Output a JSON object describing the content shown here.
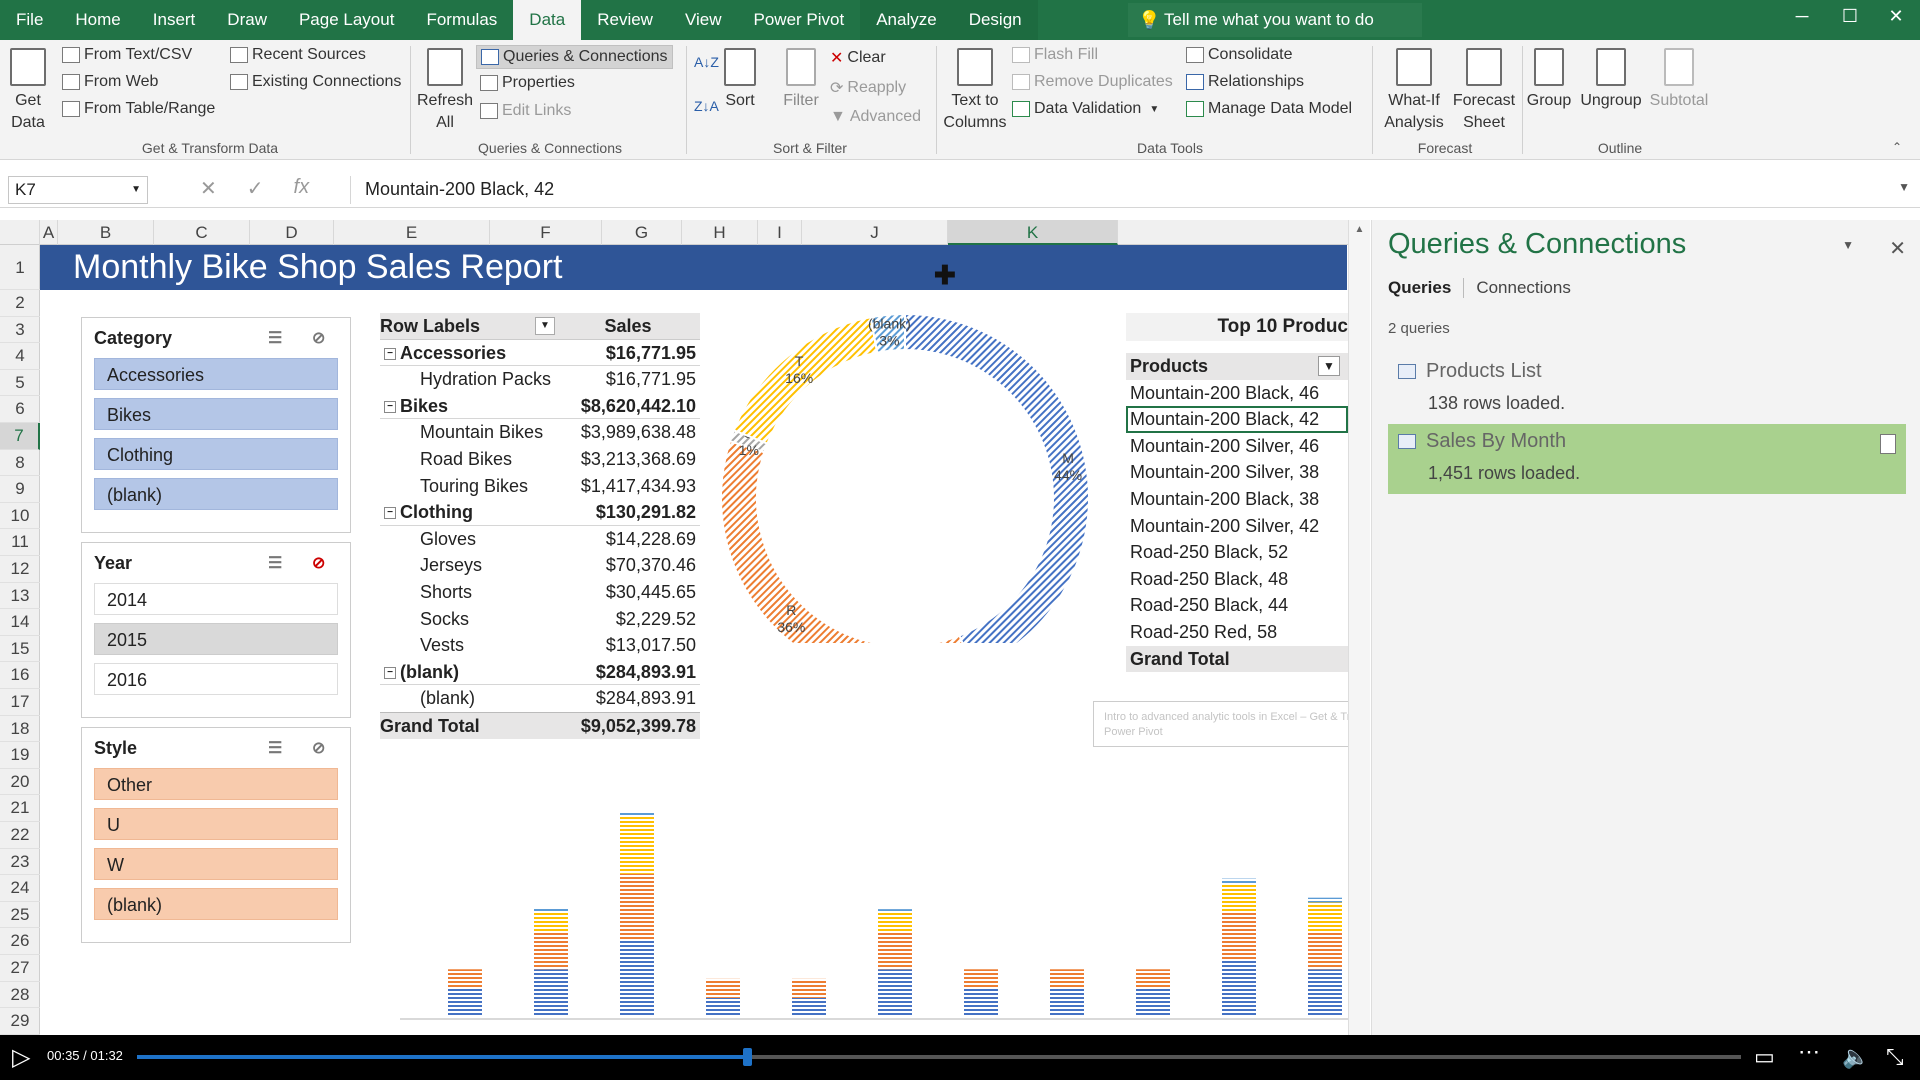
{
  "tabs": [
    "File",
    "Home",
    "Insert",
    "Draw",
    "Page Layout",
    "Formulas",
    "Data",
    "Review",
    "View",
    "Power Pivot",
    "Analyze",
    "Design"
  ],
  "tell_me": "Tell me what you want to do",
  "ribbon": {
    "get_data": "Get Data",
    "from_text": "From Text/CSV",
    "from_web": "From Web",
    "from_table": "From Table/Range",
    "recent_sources": "Recent Sources",
    "existing_connections": "Existing Connections",
    "group_get_transform": "Get & Transform Data",
    "refresh_all": "Refresh All",
    "queries_connections": "Queries & Connections",
    "properties": "Properties",
    "edit_links": "Edit Links",
    "group_queries": "Queries & Connections",
    "sort": "Sort",
    "filter": "Filter",
    "clear": "Clear",
    "reapply": "Reapply",
    "advanced": "Advanced",
    "group_sort_filter": "Sort & Filter",
    "text_to_columns": "Text to Columns",
    "flash_fill": "Flash Fill",
    "remove_duplicates": "Remove Duplicates",
    "data_validation": "Data Validation",
    "consolidate": "Consolidate",
    "relationships": "Relationships",
    "manage_data_model": "Manage Data Model",
    "group_data_tools": "Data Tools",
    "what_if": "What-If Analysis",
    "forecast_sheet": "Forecast Sheet",
    "group_forecast": "Forecast",
    "group": "Group",
    "ungroup": "Ungroup",
    "subtotal": "Subtotal",
    "group_outline": "Outline"
  },
  "formula_bar": {
    "name_box": "K7",
    "content": "Mountain-200 Black, 42"
  },
  "columns": [
    "A",
    "B",
    "C",
    "D",
    "E",
    "F",
    "G",
    "H",
    "I",
    "J",
    "K"
  ],
  "rows": [
    "1",
    "2",
    "3",
    "4",
    "5",
    "6",
    "7",
    "8",
    "9",
    "10",
    "11",
    "12",
    "13",
    "14",
    "15",
    "16",
    "17",
    "18",
    "19",
    "20",
    "21",
    "22",
    "23",
    "24",
    "25",
    "26",
    "27",
    "28",
    "29"
  ],
  "report_title": "Monthly Bike Shop Sales Report",
  "slicers": {
    "category": {
      "title": "Category",
      "items": [
        "Accessories",
        "Bikes",
        "Clothing",
        "(blank)"
      ]
    },
    "year": {
      "title": "Year",
      "items": [
        "2014",
        "2015",
        "2016"
      ],
      "selected": "2015"
    },
    "style": {
      "title": "Style",
      "items": [
        "Other",
        "U",
        "W",
        "(blank)"
      ]
    }
  },
  "pivot": {
    "header_label": "Row Labels",
    "header_value": "Sales",
    "rows": [
      {
        "label": "Accessories",
        "value": "$16,771.95",
        "level": "group"
      },
      {
        "label": "Hydration Packs",
        "value": "$16,771.95",
        "level": "sub"
      },
      {
        "label": "Bikes",
        "value": "$8,620,442.10",
        "level": "group"
      },
      {
        "label": "Mountain Bikes",
        "value": "$3,989,638.48",
        "level": "sub"
      },
      {
        "label": "Road Bikes",
        "value": "$3,213,368.69",
        "level": "sub"
      },
      {
        "label": "Touring Bikes",
        "value": "$1,417,434.93",
        "level": "sub"
      },
      {
        "label": "Clothing",
        "value": "$130,291.82",
        "level": "group"
      },
      {
        "label": "Gloves",
        "value": "$14,228.69",
        "level": "sub"
      },
      {
        "label": "Jerseys",
        "value": "$70,370.46",
        "level": "sub"
      },
      {
        "label": "Shorts",
        "value": "$30,445.65",
        "level": "sub"
      },
      {
        "label": "Socks",
        "value": "$2,229.52",
        "level": "sub"
      },
      {
        "label": "Vests",
        "value": "$13,017.50",
        "level": "sub"
      },
      {
        "label": "(blank)",
        "value": "$284,893.91",
        "level": "group"
      },
      {
        "label": "(blank)",
        "value": "$284,893.91",
        "level": "sub"
      }
    ],
    "grand_total_label": "Grand Total",
    "grand_total_value": "$9,052,399.78"
  },
  "top10": {
    "title": "Top 10 Produc",
    "header": "Products",
    "items": [
      "Mountain-200 Black, 46",
      "Mountain-200 Black, 42",
      "Mountain-200 Silver, 46",
      "Mountain-200 Silver, 38",
      "Mountain-200 Black, 38",
      "Mountain-200 Silver, 42",
      "Road-250 Black, 52",
      "Road-250 Black, 48",
      "Road-250 Black, 44",
      "Road-250 Red, 58"
    ],
    "selected_index": 1,
    "grand_total": "Grand Total"
  },
  "tooltip": "Intro to advanced analytic tools in Excel – Get & Transform, and Power Pivot",
  "chart_data": [
    {
      "type": "pie",
      "style": "donut",
      "slices": [
        {
          "label": "M",
          "value": 44,
          "pct": "44%",
          "color": "#4472c4"
        },
        {
          "label": "R",
          "value": 36,
          "pct": "36%",
          "color": "#ed7d31"
        },
        {
          "label": "S",
          "value": 1,
          "pct": "1%",
          "color": "#a5a5a5"
        },
        {
          "label": "T",
          "value": 16,
          "pct": "16%",
          "color": "#ffc000"
        },
        {
          "label": "(blank)",
          "value": 3,
          "pct": "3%",
          "color": "#5b9bd5"
        }
      ]
    },
    {
      "type": "bar",
      "stacked": true,
      "categories_count": 11,
      "series": [
        {
          "color": "#4472c4",
          "values": [
            3,
            5,
            8,
            2,
            2,
            5,
            3,
            3,
            3,
            6,
            5
          ]
        },
        {
          "color": "#ed7d31",
          "values": [
            2,
            4,
            7,
            2,
            2,
            4,
            2,
            2,
            2,
            5,
            4
          ]
        },
        {
          "color": "#ffc000",
          "values": [
            0,
            2,
            6,
            0,
            0,
            2,
            0,
            0,
            0,
            3,
            3
          ]
        },
        {
          "color": "#5b9bd5",
          "values": [
            0,
            0.5,
            0.5,
            0,
            0,
            0.3,
            0,
            0,
            0,
            0.5,
            0.5
          ]
        }
      ],
      "ylim": [
        0,
        22
      ]
    }
  ],
  "pane": {
    "title": "Queries & Connections",
    "tab_queries": "Queries",
    "tab_connections": "Connections",
    "count": "2 queries",
    "queries": [
      {
        "name": "Products List",
        "rows": "138 rows loaded."
      },
      {
        "name": "Sales By Month",
        "rows": "1,451 rows loaded."
      }
    ]
  },
  "video": {
    "time": "00:35 / 01:32",
    "progress": 0.38
  }
}
